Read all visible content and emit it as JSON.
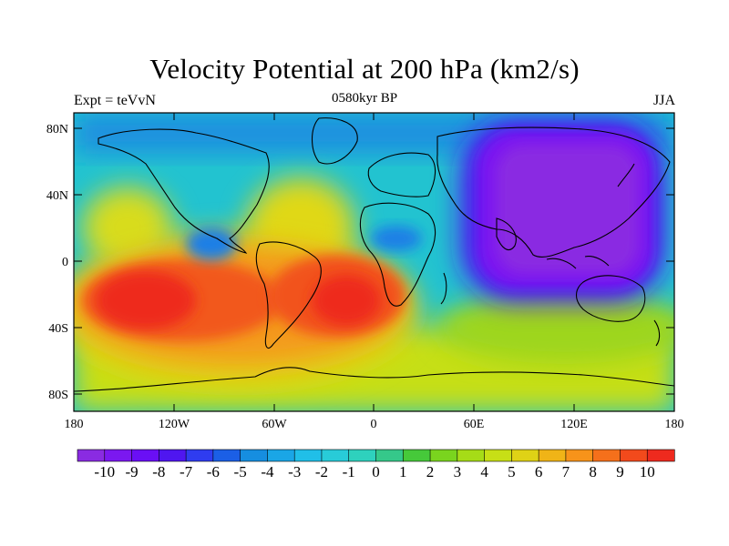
{
  "title": "Velocity Potential at 200 hPa (km2/s)",
  "left_subtitle": "Expt = teVvN",
  "center_subtitle": "0580kyr BP",
  "right_subtitle": "JJA",
  "lat_ticks": [
    "80N",
    "40N",
    "0",
    "40S",
    "80S"
  ],
  "lon_ticks": [
    "180",
    "120W",
    "60W",
    "0",
    "60E",
    "120E",
    "180"
  ],
  "colorbar": {
    "labels": [
      "-10",
      "-9",
      "-8",
      "-7",
      "-6",
      "-5",
      "-4",
      "-3",
      "-2",
      "-1",
      "0",
      "1",
      "2",
      "3",
      "4",
      "5",
      "6",
      "7",
      "8",
      "9",
      "10"
    ],
    "colors": [
      "#8a2be2",
      "#7b18f0",
      "#6a0ff5",
      "#4f16f0",
      "#2f3cf0",
      "#1b5fe6",
      "#168ee0",
      "#1aa6e6",
      "#20bfe8",
      "#28cbd8",
      "#2ed1bd",
      "#35c88a",
      "#46c93a",
      "#7ad41e",
      "#a6dc17",
      "#c7df16",
      "#dfd216",
      "#f0b417",
      "#f7931a",
      "#f5701b",
      "#f24a1c",
      "#ee2a1e"
    ]
  },
  "map_style": {
    "background": "#22c8c8",
    "negative_center_color": "#7a1fee",
    "positive_center_color": "#ee2a1e",
    "coastline_color": "#000000"
  }
}
